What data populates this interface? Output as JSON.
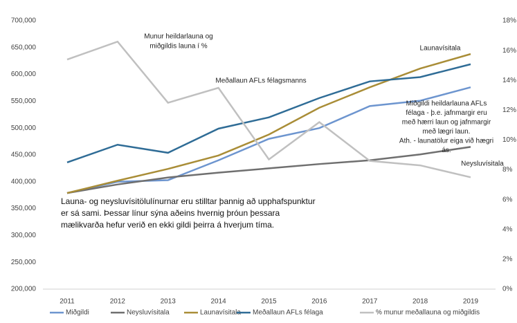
{
  "chart_data": {
    "type": "line",
    "categories": [
      "2011",
      "2012",
      "2013",
      "2014",
      "2015",
      "2016",
      "2017",
      "2018",
      "2019"
    ],
    "series": [
      {
        "name": "Miðgildi",
        "color": "#6d95cf",
        "values": [
          379000,
          400000,
          403000,
          440000,
          480000,
          500000,
          541000,
          551000,
          576000
        ]
      },
      {
        "name": "Neysluvísitala",
        "color": "#6f6f6f",
        "values": [
          379000,
          395000,
          408000,
          417000,
          425000,
          433000,
          440000,
          451000,
          465000
        ]
      },
      {
        "name": "Launavísitala",
        "color": "#a98d37",
        "values": [
          379000,
          402000,
          424000,
          449000,
          488000,
          538000,
          576000,
          611000,
          638000
        ]
      },
      {
        "name": "Meðallaun AFLs félaga",
        "color": "#2f6c96",
        "values": [
          436000,
          469000,
          454000,
          499000,
          520000,
          556000,
          587000,
          595000,
          619000
        ]
      },
      {
        "name": "% munur meðallauna og miðgildis",
        "color": "#c0c0c0",
        "axis": "y2",
        "values": [
          15.4,
          16.6,
          12.5,
          13.5,
          8.7,
          11.2,
          8.6,
          8.3,
          7.5
        ]
      }
    ],
    "ylim": [
      200000,
      700000
    ],
    "yticks": [
      {
        "value": 200000,
        "label": "200,000"
      },
      {
        "value": 250000,
        "label": "250,000"
      },
      {
        "value": 300000,
        "label": "300,000"
      },
      {
        "value": 350000,
        "label": "350,000"
      },
      {
        "value": 400000,
        "label": "400,000"
      },
      {
        "value": 450000,
        "label": "450,000"
      },
      {
        "value": 500000,
        "label": "500,000"
      },
      {
        "value": 550000,
        "label": "550,000"
      },
      {
        "value": 600000,
        "label": "600,000"
      },
      {
        "value": 650000,
        "label": "650,000"
      },
      {
        "value": 700000,
        "label": "700,000"
      }
    ],
    "y2lim": [
      0,
      18
    ],
    "y2ticks": [
      {
        "value": 0,
        "label": "0%"
      },
      {
        "value": 2,
        "label": "2%"
      },
      {
        "value": 4,
        "label": "4%"
      },
      {
        "value": 6,
        "label": "6%"
      },
      {
        "value": 8,
        "label": "8%"
      },
      {
        "value": 10,
        "label": "10%"
      },
      {
        "value": 12,
        "label": "12%"
      },
      {
        "value": 14,
        "label": "14%"
      },
      {
        "value": 16,
        "label": "16%"
      },
      {
        "value": 18,
        "label": "18%"
      }
    ],
    "grid": false,
    "legend": "bottom",
    "annotations": [
      [
        "Munur heildarlauna og",
        "miðgildis launa í %"
      ],
      [
        "Launavísitala"
      ],
      [
        "Meðallaun AFLs félagsmanns"
      ],
      [
        "Miðgildi heildarlauna AFLs",
        "félaga - þ.e. jafnmargir eru",
        "með hærri laun og jafnmargir",
        "með lægri laun.",
        "Ath. - launatölur eiga við hægri",
        "ás."
      ],
      [
        "Neysluvísitala"
      ],
      [
        "Launa- og neysluvísitölulínurnar eru stilltar þannig að upphafspunktur",
        "er sá sami. Þessar línur sýna aðeins hvernig þróun þessara",
        "mælikvarða hefur verið en ekki gildi þeirra á hverjum tíma."
      ]
    ]
  }
}
